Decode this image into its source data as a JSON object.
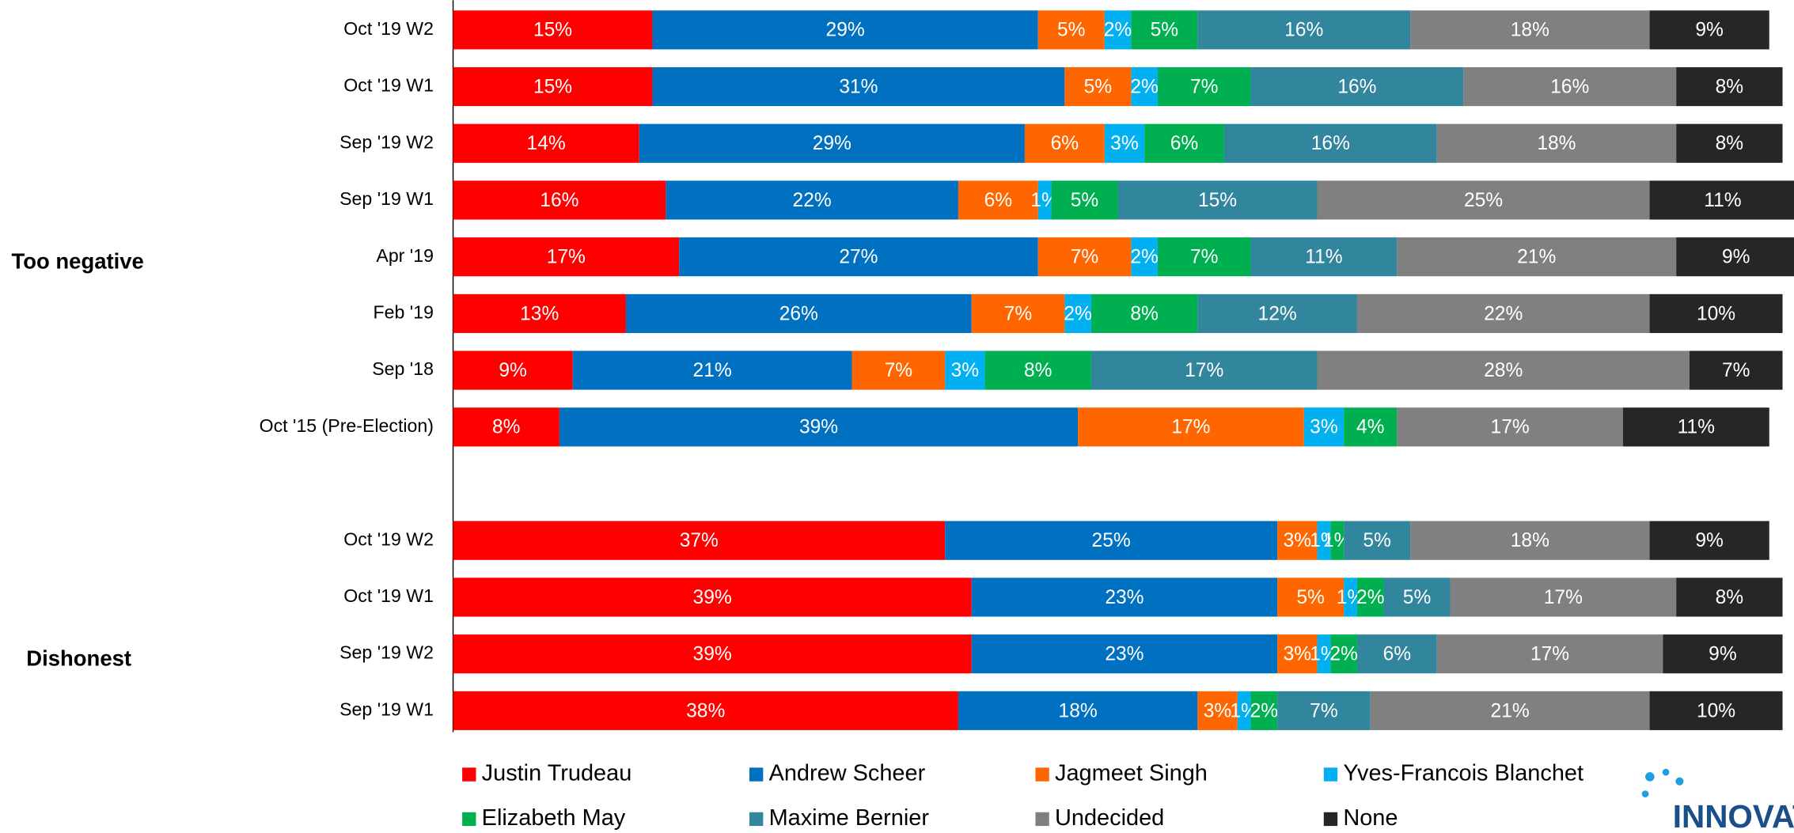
{
  "chart_data": {
    "type": "bar",
    "orientation": "horizontal",
    "stacked": true,
    "xlim": [
      0,
      100
    ],
    "series": [
      {
        "name": "Justin Trudeau",
        "color": "#ff0000"
      },
      {
        "name": "Andrew Scheer",
        "color": "#0070c0"
      },
      {
        "name": "Jagmeet Singh",
        "color": "#ff6600"
      },
      {
        "name": "Yves-Francois Blanchet",
        "color": "#00b0f0"
      },
      {
        "name": "Elizabeth May",
        "color": "#00b050"
      },
      {
        "name": "Maxime Bernier",
        "color": "#31859c"
      },
      {
        "name": "Undecided",
        "color": "#808080"
      },
      {
        "name": "None",
        "color": "#262626"
      }
    ],
    "groups": [
      {
        "name": "Too negative",
        "rows": [
          {
            "category": "Oct '19 W2",
            "values": [
              15,
              29,
              5,
              2,
              5,
              16,
              18,
              9
            ],
            "value_labels": [
              "15%",
              "29%",
              "5%",
              "2%",
              "5%",
              "16%",
              "18%",
              "9%"
            ]
          },
          {
            "category": "Oct '19 W1",
            "values": [
              15,
              31,
              5,
              2,
              7,
              16,
              16,
              8
            ],
            "value_labels": [
              "15%",
              "31%",
              "5%",
              "2%",
              "7%",
              "16%",
              "16%",
              "8%"
            ]
          },
          {
            "category": "Sep '19 W2",
            "values": [
              14,
              29,
              6,
              3,
              6,
              16,
              18,
              8
            ],
            "value_labels": [
              "14%",
              "29%",
              "6%",
              "3%",
              "6%",
              "16%",
              "18%",
              "8%"
            ]
          },
          {
            "category": "Sep '19 W1",
            "values": [
              16,
              22,
              6,
              1,
              5,
              15,
              25,
              11
            ],
            "value_labels": [
              "16%",
              "22%",
              "6%",
              "1%",
              "5%",
              "15%",
              "25%",
              "11%"
            ]
          },
          {
            "category": "Apr '19",
            "values": [
              17,
              27,
              7,
              2,
              7,
              11,
              21,
              9
            ],
            "value_labels": [
              "17%",
              "27%",
              "7%",
              "2%",
              "7%",
              "11%",
              "21%",
              "9%"
            ]
          },
          {
            "category": "Feb '19",
            "values": [
              13,
              26,
              7,
              2,
              8,
              12,
              22,
              10
            ],
            "value_labels": [
              "13%",
              "26%",
              "7%",
              "2%",
              "8%",
              "12%",
              "22%",
              "10%"
            ]
          },
          {
            "category": "Sep '18",
            "values": [
              9,
              21,
              7,
              3,
              8,
              17,
              28,
              7
            ],
            "value_labels": [
              "9%",
              "21%",
              "7%",
              "3%",
              "8%",
              "17%",
              "28%",
              "7%"
            ]
          },
          {
            "category": "Oct '15 (Pre-Election)",
            "values": [
              8,
              39,
              17,
              3,
              4,
              null,
              17,
              11
            ],
            "value_labels": [
              "8%",
              "39%",
              "17%",
              "3%",
              "4%",
              null,
              "17%",
              "11%"
            ]
          }
        ]
      },
      {
        "name": "Dishonest",
        "rows": [
          {
            "category": "Oct '19 W2",
            "values": [
              37,
              25,
              3,
              1,
              1,
              5,
              18,
              9
            ],
            "value_labels": [
              "37%",
              "25%",
              "3%",
              "1%",
              "1%",
              "5%",
              "18%",
              "9%"
            ]
          },
          {
            "category": "Oct '19 W1",
            "values": [
              39,
              23,
              5,
              1,
              2,
              5,
              17,
              8
            ],
            "value_labels": [
              "39%",
              "23%",
              "5%",
              "1%",
              "2%",
              "5%",
              "17%",
              "8%"
            ]
          },
          {
            "category": "Sep '19 W2",
            "values": [
              39,
              23,
              3,
              1,
              2,
              6,
              17,
              9
            ],
            "value_labels": [
              "39%",
              "23%",
              "3%",
              "1%",
              "2%",
              "6%",
              "17%",
              "9%"
            ]
          },
          {
            "category": "Sep '19 W1",
            "values": [
              38,
              18,
              3,
              1,
              2,
              7,
              21,
              10
            ],
            "value_labels": [
              "38%",
              "18%",
              "3%",
              "1%",
              "2%",
              "7%",
              "21%",
              "10%"
            ]
          }
        ]
      }
    ]
  },
  "logo_text": "INNOVAT"
}
